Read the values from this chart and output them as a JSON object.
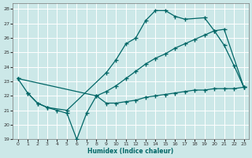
{
  "xlabel": "Humidex (Indice chaleur)",
  "bg_color": "#cce8e8",
  "grid_color": "#ffffff",
  "line_color": "#006666",
  "xlim": [
    -0.5,
    23.5
  ],
  "ylim": [
    19,
    28.4
  ],
  "xticks": [
    0,
    1,
    2,
    3,
    4,
    5,
    6,
    7,
    8,
    9,
    10,
    11,
    12,
    13,
    14,
    15,
    16,
    17,
    18,
    19,
    20,
    21,
    22,
    23
  ],
  "yticks": [
    19,
    20,
    21,
    22,
    23,
    24,
    25,
    26,
    27,
    28
  ],
  "line_arc": {
    "x": [
      0,
      1,
      2,
      3,
      5,
      9,
      10,
      11,
      12,
      13,
      14,
      15,
      16,
      17,
      19,
      20,
      21,
      22,
      23
    ],
    "y": [
      23.2,
      22.2,
      21.5,
      21.2,
      21.0,
      23.6,
      24.5,
      25.6,
      26.0,
      27.2,
      27.9,
      27.9,
      27.5,
      27.3,
      27.4,
      26.5,
      25.5,
      24.1,
      22.6
    ]
  },
  "line_diag": {
    "x": [
      0,
      8,
      9,
      10,
      11,
      12,
      13,
      14,
      15,
      16,
      17,
      18,
      19,
      20,
      21,
      23
    ],
    "y": [
      23.2,
      22.0,
      22.3,
      22.7,
      23.2,
      23.7,
      24.2,
      24.6,
      24.9,
      25.3,
      25.6,
      25.9,
      26.2,
      26.5,
      26.6,
      22.6
    ]
  },
  "line_flat": {
    "x": [
      1,
      2,
      3,
      4,
      5,
      6,
      7,
      8,
      9,
      10,
      11,
      12,
      13,
      14,
      15,
      16,
      17,
      18,
      19,
      20,
      21,
      22,
      23
    ],
    "y": [
      22.2,
      21.5,
      21.2,
      21.0,
      20.8,
      19.0,
      20.8,
      22.0,
      21.5,
      21.5,
      21.6,
      21.7,
      21.9,
      22.0,
      22.1,
      22.2,
      22.3,
      22.4,
      22.4,
      22.5,
      22.5,
      22.5,
      22.6
    ]
  }
}
